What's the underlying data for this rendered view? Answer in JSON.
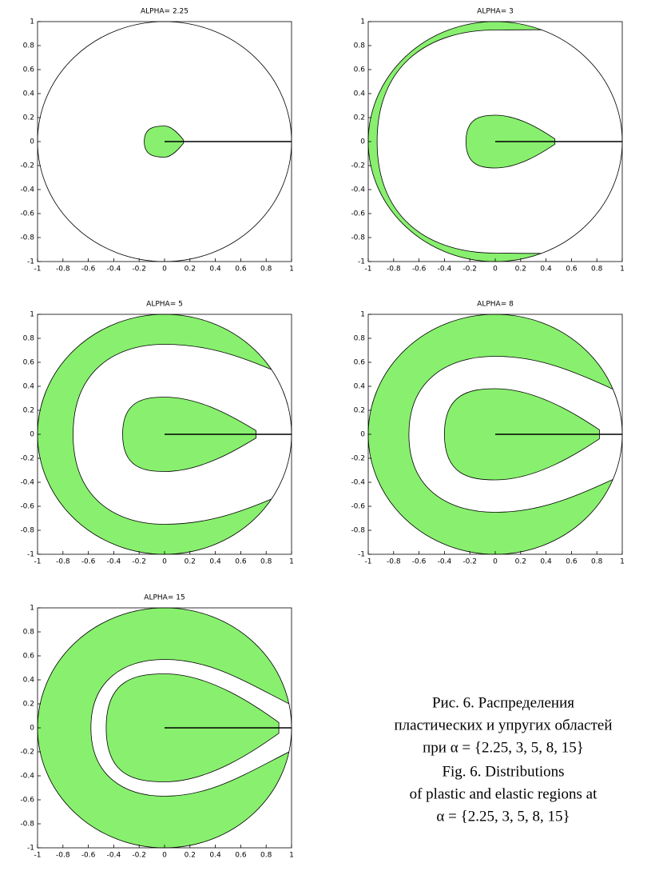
{
  "chart_data": [
    {
      "type": "region",
      "title": "ALPHA= 2.25",
      "xlim": [
        -1,
        1
      ],
      "ylim": [
        -1,
        1
      ],
      "xticks": [
        -1,
        -0.8,
        -0.6,
        -0.4,
        -0.2,
        0,
        0.2,
        0.4,
        0.6,
        0.8,
        1
      ],
      "yticks": [
        -1,
        -0.8,
        -0.6,
        -0.4,
        -0.2,
        0,
        0.2,
        0.4,
        0.6,
        0.8,
        1
      ],
      "color": "#88f06e"
    },
    {
      "type": "region",
      "title": "ALPHA= 3",
      "xlim": [
        -1,
        1
      ],
      "ylim": [
        -1,
        1
      ],
      "xticks": [
        -1,
        -0.8,
        -0.6,
        -0.4,
        -0.2,
        0,
        0.2,
        0.4,
        0.6,
        0.8,
        1
      ],
      "yticks": [
        -1,
        -0.8,
        -0.6,
        -0.4,
        -0.2,
        0,
        0.2,
        0.4,
        0.6,
        0.8,
        1
      ],
      "color": "#88f06e"
    },
    {
      "type": "region",
      "title": "ALPHA= 5",
      "xlim": [
        -1,
        1
      ],
      "ylim": [
        -1,
        1
      ],
      "xticks": [
        -1,
        -0.8,
        -0.6,
        -0.4,
        -0.2,
        0,
        0.2,
        0.4,
        0.6,
        0.8,
        1
      ],
      "yticks": [
        -1,
        -0.8,
        -0.6,
        -0.4,
        -0.2,
        0,
        0.2,
        0.4,
        0.6,
        0.8,
        1
      ],
      "color": "#88f06e"
    },
    {
      "type": "region",
      "title": "ALPHA= 8",
      "xlim": [
        -1,
        1
      ],
      "ylim": [
        -1,
        1
      ],
      "xticks": [
        -1,
        -0.8,
        -0.6,
        -0.4,
        -0.2,
        0,
        0.2,
        0.4,
        0.6,
        0.8,
        1
      ],
      "yticks": [
        -1,
        -0.8,
        -0.6,
        -0.4,
        -0.2,
        0,
        0.2,
        0.4,
        0.6,
        0.8,
        1
      ],
      "color": "#88f06e"
    },
    {
      "type": "region",
      "title": "ALPHA= 15",
      "xlim": [
        -1,
        1
      ],
      "ylim": [
        -1,
        1
      ],
      "xticks": [
        -1,
        -0.8,
        -0.6,
        -0.4,
        -0.2,
        0,
        0.2,
        0.4,
        0.6,
        0.8,
        1
      ],
      "yticks": [
        -1,
        -0.8,
        -0.6,
        -0.4,
        -0.2,
        0,
        0.2,
        0.4,
        0.6,
        0.8,
        1
      ],
      "color": "#88f06e"
    }
  ],
  "caption": {
    "ru": [
      "Рис. 6. Распределения",
      "пластических и упругих областей",
      "при  α = {2.25, 3, 5, 8, 15}"
    ],
    "en": [
      "Fig. 6. Distributions",
      "of plastic and elastic regions at",
      "α = {2.25, 3, 5, 8, 15}"
    ]
  }
}
